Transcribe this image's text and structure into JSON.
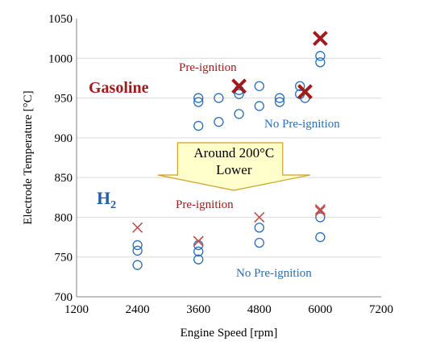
{
  "chart_data": {
    "type": "scatter",
    "xlabel": "Engine Speed [rpm]",
    "ylabel": "Electrode Temperature [°C]",
    "xlim": [
      1200,
      7200
    ],
    "ylim": [
      700,
      1050
    ],
    "xticks": [
      1200,
      2400,
      3600,
      4800,
      6000,
      7200
    ],
    "yticks": [
      700,
      750,
      800,
      850,
      900,
      950,
      1000,
      1050
    ],
    "xtick_labels": [
      "1200",
      "2400",
      "3600",
      "4800",
      "6000",
      "7200"
    ],
    "ytick_labels": [
      "700",
      "750",
      "800",
      "850",
      "900",
      "950",
      "1000",
      "1050"
    ],
    "grid": "horizontal",
    "series": [
      {
        "marker": "circle",
        "color": "#2a6db5",
        "points": [
          [
            3600,
            915
          ],
          [
            3600,
            945
          ],
          [
            3600,
            950
          ],
          [
            4000,
            920
          ],
          [
            4000,
            950
          ],
          [
            4400,
            930
          ],
          [
            4400,
            955
          ],
          [
            4400,
            960
          ],
          [
            4800,
            940
          ],
          [
            4800,
            965
          ],
          [
            5200,
            945
          ],
          [
            5200,
            950
          ],
          [
            5600,
            955
          ],
          [
            5600,
            965
          ],
          [
            5700,
            950
          ],
          [
            6000,
            995
          ],
          [
            6000,
            1003
          ]
        ]
      },
      {
        "marker": "x-bold",
        "color": "#a01c1c",
        "points": [
          [
            4400,
            965
          ],
          [
            5700,
            958
          ],
          [
            6000,
            1025
          ]
        ]
      },
      {
        "marker": "circle",
        "color": "#2a6db5",
        "points": [
          [
            2400,
            740
          ],
          [
            2400,
            758
          ],
          [
            2400,
            765
          ],
          [
            3600,
            747
          ],
          [
            3600,
            757
          ],
          [
            3600,
            765
          ],
          [
            4800,
            768
          ],
          [
            4800,
            787
          ],
          [
            6000,
            775
          ],
          [
            6000,
            800
          ]
        ]
      },
      {
        "marker": "x",
        "color": "#c0504d",
        "points": [
          [
            2400,
            787
          ],
          [
            3600,
            770
          ],
          [
            4800,
            800
          ],
          [
            6000,
            808
          ],
          [
            6000,
            810
          ]
        ]
      }
    ],
    "annotations": {
      "gasoline_label": "Gasoline",
      "h2_label": "H",
      "h2_subscript": "2",
      "gasoline_preignition": "Pre-ignition",
      "gasoline_no_preignition": "No Pre-ignition",
      "h2_preignition": "Pre-ignition",
      "h2_no_preignition": "No Pre-ignition",
      "arrow_line1": "Around 200°C",
      "arrow_line2": "Lower"
    },
    "colors": {
      "arrow_fill": "#ffffcc",
      "arrow_stroke": "#c9a227"
    }
  }
}
